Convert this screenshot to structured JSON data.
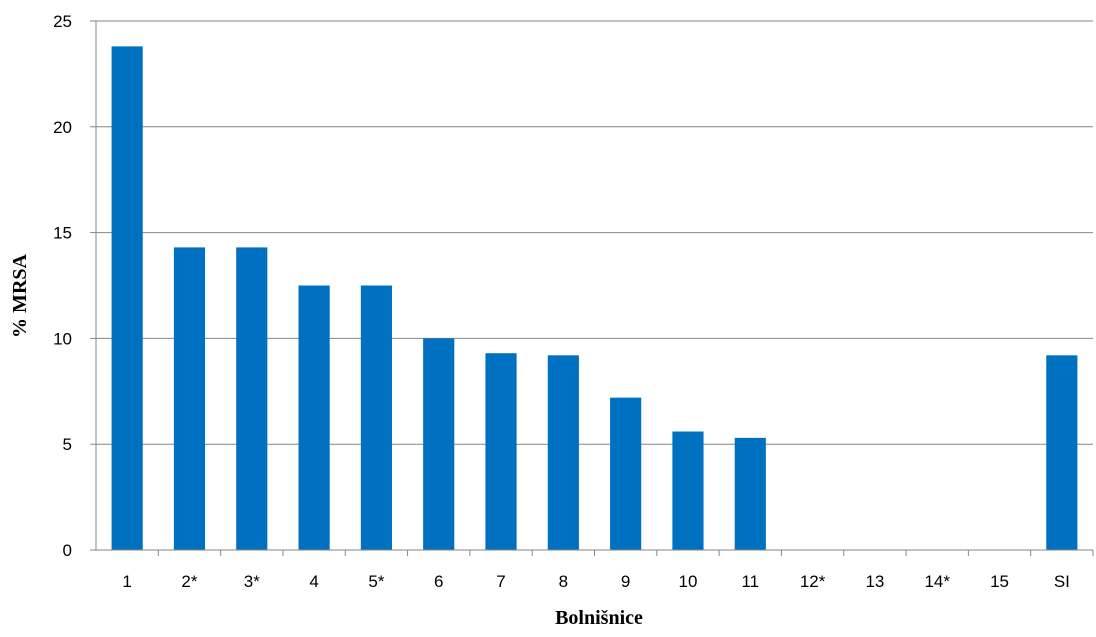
{
  "chart_data": {
    "type": "bar",
    "title": "",
    "xlabel": "Bolnišnice",
    "ylabel": "% MRSA",
    "categories": [
      "1",
      "2*",
      "3*",
      "4",
      "5*",
      "6",
      "7",
      "8",
      "9",
      "10",
      "11",
      "12*",
      "13",
      "14*",
      "15",
      "SI"
    ],
    "values": [
      23.8,
      14.3,
      14.3,
      12.5,
      12.5,
      10.0,
      9.3,
      9.2,
      7.2,
      5.6,
      5.3,
      0,
      0,
      0,
      0,
      9.2
    ],
    "ylim": [
      0,
      25
    ],
    "yticks": [
      "0",
      "5",
      "10",
      "15",
      "20",
      "25"
    ],
    "grid": true,
    "legend": "none",
    "colors": {
      "bar": "#0070C0",
      "grid": "#868686",
      "axis": "#868686"
    }
  }
}
